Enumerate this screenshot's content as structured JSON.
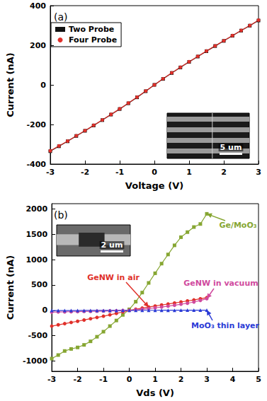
{
  "chart_data": [
    {
      "type": "line",
      "title": "(a)",
      "x_label": "Voltage (V)",
      "y_label": "Current (nA)",
      "xlim": [
        -3,
        3
      ],
      "xticks": [
        -3,
        -2,
        -1,
        0,
        1,
        2,
        3
      ],
      "ylim": [
        -400,
        400
      ],
      "yticks": [
        -400,
        -200,
        0,
        200,
        400
      ],
      "grid": false,
      "legend": "upper left",
      "annotations": [
        "5 um"
      ],
      "x": [
        -3,
        -2.75,
        -2.5,
        -2.25,
        -2,
        -1.75,
        -1.5,
        -1.25,
        -1,
        -0.75,
        -0.5,
        -0.25,
        0,
        0.25,
        0.5,
        0.75,
        1,
        1.25,
        1.5,
        1.75,
        2,
        2.25,
        2.5,
        2.75,
        3
      ],
      "series": [
        {
          "name": "Two Probe",
          "color": "#111111",
          "marker": "square",
          "line_style": "solid",
          "values": [
            -335,
            -310,
            -285,
            -258,
            -232,
            -205,
            -178,
            -150,
            -122,
            -93,
            -63,
            -32,
            0,
            30,
            60,
            88,
            116,
            143,
            170,
            196,
            222,
            248,
            274,
            299,
            325
          ]
        },
        {
          "name": "Four Probe",
          "color": "#e0302a",
          "marker": "circle",
          "line_style": "solid",
          "values": [
            -333,
            -308,
            -284,
            -257,
            -231,
            -204,
            -177,
            -149,
            -121,
            -92,
            -62,
            -31,
            0,
            31,
            61,
            89,
            117,
            144,
            171,
            197,
            223,
            249,
            275,
            300,
            327
          ]
        }
      ]
    },
    {
      "type": "line",
      "title": "(b)",
      "x_label": "Vds (V)",
      "y_label": "Current (nA)",
      "xlim": [
        -3,
        5
      ],
      "xticks": [
        -3,
        -2,
        -1,
        0,
        1,
        2,
        3,
        4,
        5
      ],
      "ylim": [
        -1200,
        2100
      ],
      "yticks": [
        -1000,
        -500,
        0,
        500,
        1000,
        1500,
        2000
      ],
      "grid": false,
      "annotations": [
        "2 um"
      ],
      "x": [
        -3,
        -2.75,
        -2.5,
        -2.25,
        -2,
        -1.75,
        -1.5,
        -1.25,
        -1,
        -0.75,
        -0.5,
        -0.25,
        0,
        0.25,
        0.5,
        0.75,
        1,
        1.25,
        1.5,
        1.75,
        2,
        2.25,
        2.5,
        2.75,
        3
      ],
      "series": [
        {
          "name": "Ge/MoO₃",
          "color": "#86a632",
          "marker": "square",
          "line_style": "solid",
          "values": [
            -950,
            -880,
            -800,
            -760,
            -730,
            -680,
            -610,
            -520,
            -420,
            -310,
            -200,
            -90,
            20,
            170,
            350,
            540,
            730,
            920,
            1100,
            1280,
            1440,
            1540,
            1640,
            1700,
            1900
          ]
        },
        {
          "name": "GeNW in air",
          "color": "#e0302a",
          "marker": "circle",
          "line_style": "solid",
          "values": [
            -310,
            -285,
            -262,
            -238,
            -215,
            -190,
            -165,
            -140,
            -115,
            -88,
            -60,
            -30,
            0,
            22,
            45,
            65,
            85,
            105,
            125,
            145,
            165,
            185,
            205,
            228,
            250
          ]
        },
        {
          "name": "GeNW in vacuum",
          "color": "#d04a9e",
          "marker": "circle",
          "line_style": "solid",
          "values": [
            -35,
            -32,
            -30,
            -27,
            -25,
            -22,
            -20,
            -17,
            -14,
            -10,
            -7,
            -3,
            0,
            10,
            22,
            35,
            50,
            65,
            82,
            100,
            120,
            140,
            165,
            195,
            230
          ]
        },
        {
          "name": "MoO₃ thin layer",
          "color": "#2b3bd6",
          "marker": "triangle",
          "line_style": "solid",
          "values": [
            -4,
            -4,
            -3,
            -3,
            -3,
            -2,
            -2,
            -2,
            -1,
            -1,
            -1,
            0,
            0,
            0,
            1,
            1,
            1,
            2,
            2,
            2,
            3,
            3,
            3,
            4,
            4
          ]
        }
      ]
    }
  ]
}
